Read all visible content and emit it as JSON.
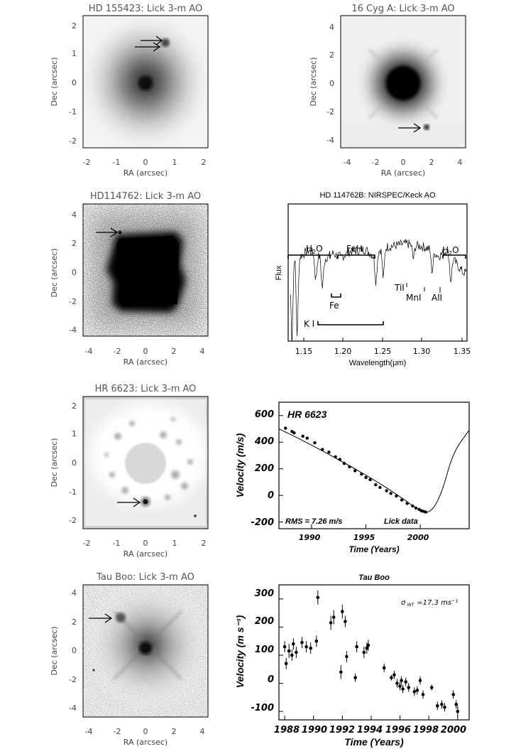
{
  "panels": [
    {
      "title": "HD 155423: Lick 3-m AO",
      "xlabel": "RA (arcsec)",
      "ylabel": "Dec (arcsec)",
      "xticks": [
        "-2",
        "-1",
        "0",
        "1",
        "2"
      ],
      "yticks": [
        "2",
        "1",
        "0",
        "-1",
        "-2"
      ]
    },
    {
      "title": "16 Cyg A: Lick 3-m AO",
      "xlabel": "RA (arcsec)",
      "ylabel": "Dec (arcsec)",
      "xticks": [
        "-4",
        "-2",
        "0",
        "2",
        "4"
      ],
      "yticks": [
        "4",
        "2",
        "0",
        "-2",
        "-4"
      ]
    },
    {
      "title": "HD114762: Lick 3-m AO",
      "xlabel": "RA (arcsec)",
      "ylabel": "Dec (arcsec)",
      "xticks": [
        "-4",
        "-2",
        "0",
        "2",
        "4"
      ],
      "yticks": [
        "4",
        "2",
        "0",
        "-2",
        "-4"
      ]
    },
    {
      "title": "HD 114762B: NIRSPEC/Keck AO",
      "xlabel": "Wavelength(μm)",
      "ylabel": "Flux",
      "xticks": [
        "1.15",
        "1.20",
        "1.25",
        "1.30",
        "1.35"
      ]
    },
    {
      "title": "HR 6623: Lick 3-m AO",
      "xlabel": "RA (arcsec)",
      "ylabel": "Dec (arcsec)",
      "xticks": [
        "-2",
        "-1",
        "0",
        "1",
        "2"
      ],
      "yticks": [
        "2",
        "1",
        "0",
        "-1",
        "-2"
      ]
    },
    {
      "label": "HR 6623",
      "xlabel": "Time  (Years)",
      "ylabel": "Velocity  (m/s)",
      "xticks": [
        "1990",
        "1995",
        "2000"
      ],
      "yticks": [
        "600",
        "400",
        "200",
        "0",
        "-200"
      ],
      "rms": "RMS = 7.26 m/s",
      "source": "Lick data"
    },
    {
      "title": "Tau Boo: Lick 3-m AO",
      "xlabel": "RA (arcsec)",
      "ylabel": "Dec (arcsec)",
      "xticks": [
        "-4",
        "-2",
        "0",
        "2",
        "4"
      ],
      "yticks": [
        "4",
        "2",
        "0",
        "-2",
        "-4"
      ]
    },
    {
      "title": "Tau Boo",
      "xlabel": "Time (Years)",
      "ylabel": "Velocity (m s⁻¹)",
      "xticks": [
        "1988",
        "1990",
        "1992",
        "1994",
        "1996",
        "1998",
        "2000"
      ],
      "yticks": [
        "300",
        "200",
        "100",
        "0",
        "-100"
      ],
      "sigma_label": "σ",
      "sigma_sub": "INT",
      "sigma_value": "=17.3  ms⁻¹"
    }
  ],
  "spectrum_labels": {
    "h2o_left": "H",
    "h2o_left_sub": "2",
    "h2o_left_tail": "O",
    "feh": "FeH",
    "h2o_right": "H",
    "h2o_right_sub": "2",
    "h2o_right_tail": "O",
    "fe": "Fe",
    "ki": "K I",
    "tii": "TiI",
    "mni": "MnI",
    "ali": "AlI"
  },
  "chart_data": [
    {
      "type": "image",
      "title": "HD 155423: Lick 3-m AO",
      "xlabel": "RA (arcsec)",
      "ylabel": "Dec (arcsec)",
      "xlim": [
        -2.5,
        2.5
      ],
      "ylim": [
        -2.3,
        2.3
      ],
      "primary": [
        0,
        0
      ],
      "companion": [
        0.7,
        0.9
      ],
      "arrow": true
    },
    {
      "type": "image",
      "title": "16 Cyg A: Lick 3-m AO",
      "xlabel": "RA (arcsec)",
      "ylabel": "Dec (arcsec)",
      "xlim": [
        -5,
        5
      ],
      "ylim": [
        -5,
        5
      ],
      "primary": [
        0,
        0
      ],
      "companion": [
        1.5,
        -3.1
      ],
      "arrow": true
    },
    {
      "type": "image",
      "title": "HD114762: Lick 3-m AO",
      "xlabel": "RA (arcsec)",
      "ylabel": "Dec (arcsec)",
      "xlim": [
        -5,
        5
      ],
      "ylim": [
        -5,
        5
      ],
      "primary": [
        0,
        0
      ],
      "companion": [
        -1.8,
        2.8
      ],
      "arrow": true
    },
    {
      "type": "line",
      "title": "HD 114762B: NIRSPEC/Keck AO",
      "xlabel": "Wavelength(μm)",
      "ylabel": "Flux",
      "xlim": [
        1.135,
        1.355
      ],
      "x": [
        1.14,
        1.15,
        1.16,
        1.17,
        1.18,
        1.19,
        1.2,
        1.21,
        1.22,
        1.23,
        1.24,
        1.25,
        1.26,
        1.27,
        1.28,
        1.29,
        1.3,
        1.31,
        1.32,
        1.33,
        1.34,
        1.35
      ],
      "y": [
        0.7,
        0.62,
        0.66,
        0.63,
        0.6,
        0.64,
        0.61,
        0.65,
        0.66,
        0.67,
        0.62,
        0.68,
        0.69,
        0.7,
        0.71,
        0.7,
        0.69,
        0.67,
        0.62,
        0.66,
        0.58,
        0.5
      ]
    },
    {
      "type": "scatter",
      "xlabel": "Time  (Years)",
      "ylabel": "Velocity  (m/s)",
      "xlim": [
        1987,
        2004.5
      ],
      "ylim": [
        -250,
        700
      ],
      "series": [
        {
          "name": "Lick data",
          "x": [
            1987.6,
            1988.2,
            1988.4,
            1989.2,
            1989.6,
            1990.3,
            1991.0,
            1991.6,
            1992.2,
            1992.6,
            1993.0,
            1993.5,
            1994.0,
            1994.6,
            1995.0,
            1995.4,
            1995.9,
            1996.3,
            1996.9,
            1997.3,
            1997.8,
            1998.3,
            1998.8,
            1999.3,
            1999.6,
            1999.9,
            2000.1,
            2000.3,
            2000.5
          ],
          "y": [
            505,
            480,
            470,
            445,
            430,
            395,
            345,
            325,
            290,
            270,
            240,
            215,
            185,
            160,
            135,
            118,
            80,
            60,
            35,
            15,
            -5,
            -35,
            -60,
            -80,
            -95,
            -105,
            -115,
            -120,
            -125
          ]
        }
      ],
      "fit": {
        "x": [
          1987,
          1990,
          1995,
          1998,
          2000,
          2001,
          2002,
          2003,
          2004.5
        ],
        "y": [
          500,
          380,
          155,
          0,
          -120,
          -130,
          20,
          320,
          490
        ]
      }
    },
    {
      "type": "image",
      "title": "HR 6623: Lick 3-m AO",
      "xlabel": "RA (arcsec)",
      "ylabel": "Dec (arcsec)",
      "xlim": [
        -2.5,
        2.5
      ],
      "ylim": [
        -2.3,
        2.3
      ],
      "primary": [
        0,
        0
      ],
      "companion": [
        0,
        -1.35
      ],
      "arrow": true
    },
    {
      "type": "image",
      "title": "Tau Boo: Lick 3-m AO",
      "xlabel": "RA (arcsec)",
      "ylabel": "Dec (arcsec)",
      "xlim": [
        -5,
        5
      ],
      "ylim": [
        -5,
        5
      ],
      "primary": [
        0,
        0
      ],
      "companion": [
        -1.7,
        2.2
      ],
      "arrow": true
    },
    {
      "type": "scatter",
      "title": "Tau Boo",
      "xlabel": "Time (Years)",
      "ylabel": "Velocity (m s⁻¹)",
      "xlim": [
        1987.6,
        2000.8
      ],
      "ylim": [
        -130,
        350
      ],
      "series": [
        {
          "x": [
            1988.0,
            1988.1,
            1988.3,
            1988.5,
            1988.6,
            1988.8,
            1989.2,
            1989.5,
            1989.8,
            1990.2,
            1990.3,
            1991.2,
            1991.4,
            1991.9,
            1992.0,
            1992.2,
            1992.3,
            1992.9,
            1993.0,
            1993.5,
            1993.7,
            1993.8,
            1994.9,
            1995.4,
            1995.6,
            1995.8,
            1996.0,
            1996.1,
            1996.2,
            1996.4,
            1996.6,
            1997.0,
            1997.2,
            1997.4,
            1997.6,
            1998.2,
            1998.6,
            1998.9,
            1999.1,
            1999.7,
            1999.9,
            2000.0
          ],
          "y": [
            130,
            70,
            115,
            100,
            140,
            110,
            145,
            130,
            125,
            150,
            305,
            215,
            235,
            40,
            255,
            220,
            95,
            20,
            130,
            110,
            125,
            135,
            55,
            20,
            30,
            0,
            -10,
            10,
            -20,
            5,
            -15,
            -30,
            -25,
            10,
            -40,
            -15,
            -80,
            -75,
            -85,
            -40,
            -75,
            -100
          ],
          "err": [
            20,
            20,
            25,
            20,
            20,
            20,
            20,
            20,
            20,
            20,
            25,
            25,
            25,
            25,
            25,
            20,
            20,
            15,
            20,
            20,
            20,
            20,
            15,
            10,
            15,
            15,
            15,
            15,
            15,
            15,
            15,
            15,
            15,
            15,
            15,
            10,
            15,
            15,
            15,
            15,
            15,
            20
          ]
        }
      ]
    }
  ]
}
